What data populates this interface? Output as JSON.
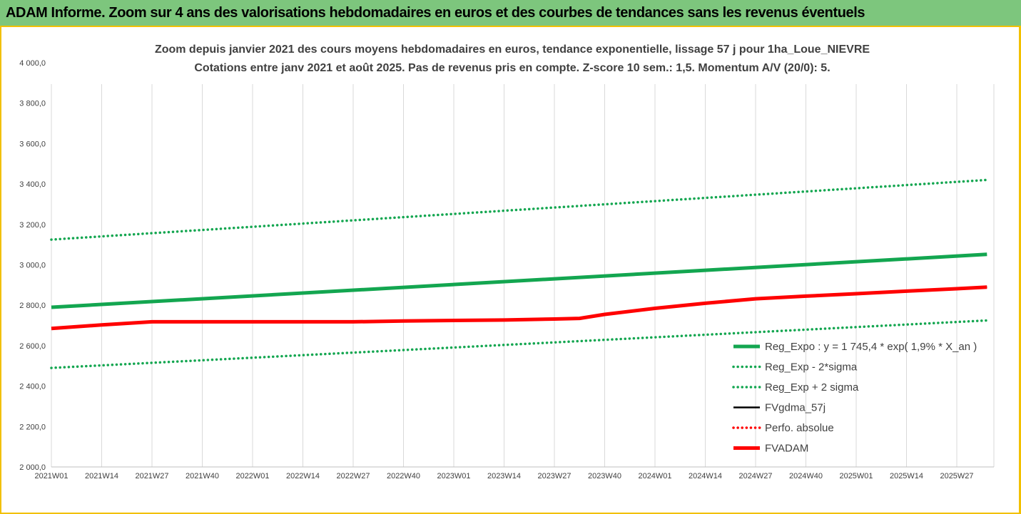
{
  "banner": {
    "title": "ADAM Informe. Zoom sur 4 ans des valorisations hebdomadaires en euros et des courbes de tendances sans les revenus éventuels"
  },
  "colors": {
    "green": "#13a650",
    "red": "#ff0000",
    "black": "#000000",
    "banner": "#7dc67d",
    "border": "#f2c000"
  },
  "chart_data": {
    "type": "line",
    "title": "Zoom depuis janvier 2021 des cours moyens hebdomadaires en euros, tendance exponentielle, lissage 57 j pour 1ha_Loue_NIEVRE",
    "subtitle": "Cotations entre janv 2021 et août 2025.  Pas de revenus pris en compte. Z-score 10 sem.: 1,5. Momentum A/V (20/0): 5.",
    "xlabel": "",
    "ylabel": "",
    "ylim": [
      2000,
      4000
    ],
    "yticks": [
      "4 000,0",
      "3 800,0",
      "3 600,0",
      "3 400,0",
      "3 200,0",
      "3 000,0",
      "2 800,0",
      "2 600,0",
      "2 400,0",
      "2 200,0",
      "2 000,0"
    ],
    "ytick_values": [
      4000,
      3800,
      3600,
      3400,
      3200,
      3000,
      2800,
      2600,
      2400,
      2200,
      2000
    ],
    "categories": [
      "2021W01",
      "2021W14",
      "2021W27",
      "2021W40",
      "2022W01",
      "2022W14",
      "2022W27",
      "2022W40",
      "2023W01",
      "2023W14",
      "2023W27",
      "2023W40",
      "2024W01",
      "2024W14",
      "2024W27",
      "2024W40",
      "2025W01",
      "2025W14",
      "2025W27"
    ],
    "grid": "vertical",
    "legend_position": "bottom-right",
    "series": [
      {
        "name": "Reg_Expo : y = 1 745,4 * exp( 1,9% *  X_an )",
        "style": "solid-thick",
        "color": "#13a650",
        "x": [
          0,
          18.6
        ],
        "values": [
          2790,
          3052
        ]
      },
      {
        "name": "Reg_Exp - 2*sigma",
        "style": "dotted",
        "color": "#13a650",
        "x": [
          0,
          18.6
        ],
        "values": [
          2490,
          2725
        ]
      },
      {
        "name": "Reg_Exp + 2 sigma",
        "style": "dotted",
        "color": "#13a650",
        "x": [
          0,
          18.6
        ],
        "values": [
          3125,
          3420
        ]
      },
      {
        "name": "FVgdma_57j",
        "style": "solid",
        "color": "#000000",
        "x": [
          0,
          1,
          2,
          3,
          4,
          5,
          6,
          7,
          8,
          9,
          10,
          10.5,
          11,
          12,
          13,
          14,
          15,
          16,
          17,
          18,
          18.6
        ],
        "values": [
          2685,
          2703,
          2718,
          2718,
          2718,
          2718,
          2718,
          2722,
          2725,
          2727,
          2732,
          2735,
          2755,
          2785,
          2810,
          2832,
          2845,
          2857,
          2870,
          2882,
          2890
        ]
      },
      {
        "name": "Perfo. absolue",
        "style": "dotted",
        "color": "#ff0000",
        "x": [],
        "values": []
      },
      {
        "name": "FVADAM",
        "style": "solid-thick",
        "color": "#ff0000",
        "x": [
          0,
          1,
          2,
          3,
          4,
          5,
          6,
          7,
          8,
          9,
          10,
          10.5,
          11,
          12,
          13,
          14,
          15,
          16,
          17,
          18,
          18.6
        ],
        "values": [
          2685,
          2703,
          2718,
          2718,
          2718,
          2718,
          2718,
          2722,
          2725,
          2727,
          2732,
          2735,
          2755,
          2785,
          2810,
          2832,
          2845,
          2857,
          2870,
          2882,
          2890
        ]
      }
    ]
  }
}
